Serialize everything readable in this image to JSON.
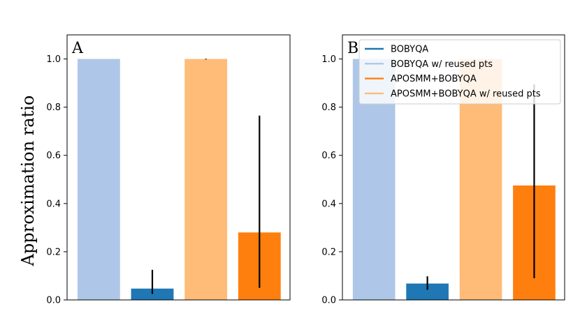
{
  "chart_data": [
    {
      "type": "bar",
      "panel_label": "A",
      "ylabel": "Approximation ratio",
      "xlabel": "",
      "ylim": [
        0,
        1.1
      ],
      "yticks": [
        "0.0",
        "0.2",
        "0.4",
        "0.6",
        "0.8",
        "1.0"
      ],
      "ytick_values": [
        0,
        0.2,
        0.4,
        0.6,
        0.8,
        1.0
      ],
      "grid": false,
      "series": [
        {
          "name": "BOBYQA w/ reused pts",
          "value": 1.0,
          "err_low": 1.0,
          "err_high": 1.0,
          "color": "#aec7e8"
        },
        {
          "name": "BOBYQA",
          "value": 0.047,
          "err_low": 0.025,
          "err_high": 0.125,
          "color": "#1f77b4"
        },
        {
          "name": "APOSMM+BOBYQA w/ reused pts",
          "value": 1.0,
          "err_low": 0.998,
          "err_high": 1.001,
          "color": "#ffbb78"
        },
        {
          "name": "APOSMM+BOBYQA",
          "value": 0.28,
          "err_low": 0.05,
          "err_high": 0.765,
          "color": "#ff7f0e"
        }
      ]
    },
    {
      "type": "bar",
      "panel_label": "B",
      "ylabel": "",
      "xlabel": "",
      "ylim": [
        0,
        1.1
      ],
      "yticks": [
        "0.0",
        "0.2",
        "0.4",
        "0.6",
        "0.8",
        "1.0"
      ],
      "ytick_values": [
        0,
        0.2,
        0.4,
        0.6,
        0.8,
        1.0
      ],
      "grid": false,
      "legend_position": "top-right",
      "series": [
        {
          "name": "BOBYQA w/ reused pts",
          "value": 1.0,
          "err_low": 1.0,
          "err_high": 1.0,
          "color": "#aec7e8"
        },
        {
          "name": "BOBYQA",
          "value": 0.068,
          "err_low": 0.042,
          "err_high": 0.098,
          "color": "#1f77b4"
        },
        {
          "name": "APOSMM+BOBYQA w/ reused pts",
          "value": 1.0,
          "err_low": 1.0,
          "err_high": 1.0,
          "color": "#ffbb78"
        },
        {
          "name": "APOSMM+BOBYQA",
          "value": 0.475,
          "err_low": 0.09,
          "err_high": 0.895,
          "color": "#ff7f0e"
        }
      ]
    }
  ],
  "legend": [
    {
      "label": "BOBYQA",
      "color": "#1f77b4"
    },
    {
      "label": "BOBYQA w/ reused pts",
      "color": "#aec7e8"
    },
    {
      "label": "APOSMM+BOBYQA",
      "color": "#ff7f0e"
    },
    {
      "label": "APOSMM+BOBYQA w/ reused pts",
      "color": "#ffbb78"
    }
  ]
}
